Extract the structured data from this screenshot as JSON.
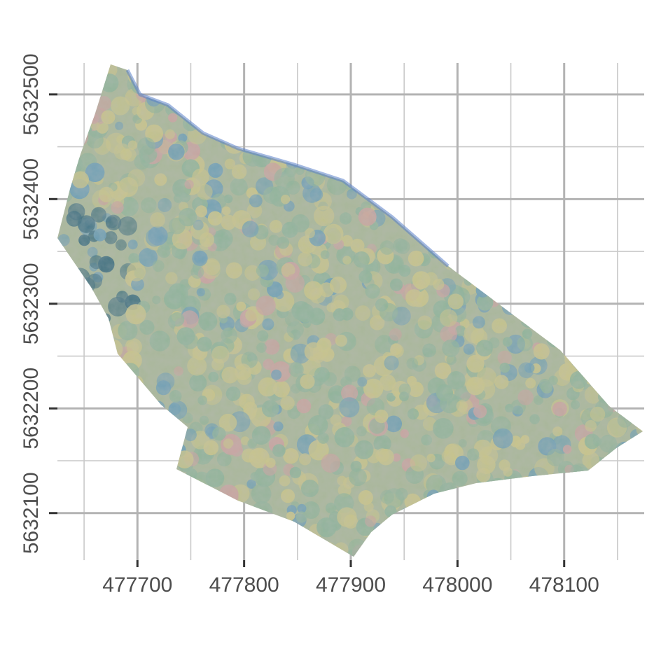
{
  "map": {
    "type": "raster-map",
    "description_visible": "orthophoto of forest canopy over projected coordinate grid",
    "x_axis": {
      "ticks": [
        477700,
        477800,
        477900,
        478000,
        478100
      ],
      "tick_labels": [
        "477700",
        "477800",
        "477900",
        "478000",
        "478100"
      ],
      "range": [
        477625,
        478175
      ]
    },
    "y_axis": {
      "ticks": [
        5632100,
        5632200,
        5632300,
        5632400,
        5632500
      ],
      "tick_labels": [
        "5632100",
        "5632200",
        "5632300",
        "5632400",
        "5632500"
      ],
      "range": [
        5632055,
        5632530
      ]
    },
    "grid": true,
    "colors": {
      "canopy_yellow": "#c8c48a",
      "canopy_green": "#8fb39a",
      "canopy_pink": "#c9a3a0",
      "canopy_blue": "#6f9fb5",
      "canopy_dark": "#3f6f80",
      "water_edge": "#5a7fc8"
    }
  }
}
